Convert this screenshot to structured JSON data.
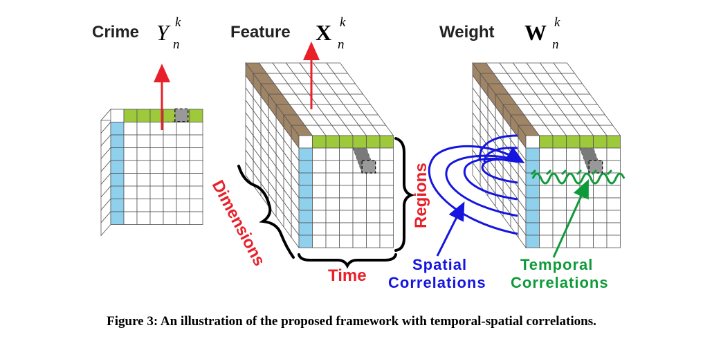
{
  "colors": {
    "green": "#9dc93b",
    "blue": "#8fd0ec",
    "brown": "#a08466",
    "gray": "#7a7a7a",
    "red_arrow": "#e8202a",
    "red_text": "#e8202a",
    "blue_text": "#1515e0",
    "green_text": "#0f9a3a"
  },
  "panels": {
    "crime": {
      "word": "Crime",
      "symbol": "Y",
      "sup": "k",
      "sub": "n"
    },
    "feature": {
      "word": "Feature",
      "symbol": "X",
      "sup": "k",
      "sub": "n"
    },
    "weight": {
      "word": "Weight",
      "symbol": "W",
      "sup": "k",
      "sub": "n"
    }
  },
  "axis_labels": {
    "dimensions": "Dimensions",
    "regions": "Regions",
    "time": "Time"
  },
  "annotations": {
    "spatial_line1": "Spatial",
    "spatial_line2": "Correlations",
    "temporal_line1": "Temporal",
    "temporal_line2": "Correlations"
  },
  "caption": "Figure 3: An illustration of the proposed framework with temporal-spatial correlations."
}
